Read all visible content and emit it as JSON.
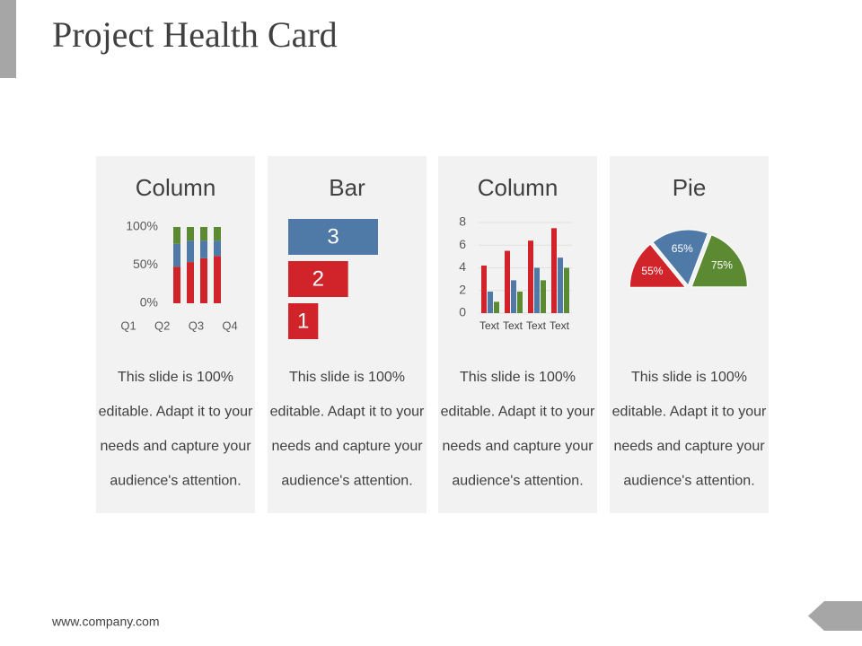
{
  "title": "Project Health Card",
  "footer": "www.company.com",
  "cards": [
    {
      "lines": [
        "This slide is 100%",
        "editable. Adapt it to your",
        "needs and capture your",
        "audience's attention."
      ]
    },
    {
      "lines": [
        "This slide is 100%",
        "editable. Adapt it to your",
        "needs and capture your",
        "audience's attention."
      ]
    },
    {
      "lines": [
        "This slide is 100%",
        "editable. Adapt it to your",
        "needs and capture your",
        "audience's attention."
      ]
    },
    {
      "lines": [
        "This slide is 100%",
        "editable. Adapt it to your",
        "needs and capture your",
        "audience's attention."
      ]
    }
  ],
  "chart_data": [
    {
      "type": "stacked-column",
      "title": "Column",
      "categories": [
        "Q1",
        "Q2",
        "Q3",
        "Q4"
      ],
      "series": [
        {
          "color": "#d0232a",
          "values": [
            48,
            54,
            59,
            62
          ]
        },
        {
          "color": "#4f79a7",
          "values": [
            30,
            28,
            23,
            20
          ]
        },
        {
          "color": "#5b8a32",
          "values": [
            22,
            18,
            18,
            18
          ]
        }
      ],
      "ylim": [
        0,
        100
      ],
      "yticks": [
        {
          "value": 0,
          "label": "0%"
        },
        {
          "value": 50,
          "label": "50%"
        },
        {
          "value": 100,
          "label": "100%"
        }
      ],
      "grid": false
    },
    {
      "type": "bar",
      "title": "Bar",
      "orientation": "horizontal",
      "values": [
        3,
        2,
        1
      ],
      "colors": [
        "#4f79a7",
        "#d0232a",
        "#d0232a"
      ],
      "xlim": [
        0,
        3
      ]
    },
    {
      "type": "column",
      "title": "Column",
      "categories": [
        "Text",
        "Text",
        "Text",
        "Text"
      ],
      "series": [
        {
          "color": "#d0232a",
          "values": [
            4.2,
            5.5,
            6.4,
            7.5
          ]
        },
        {
          "color": "#4f79a7",
          "values": [
            1.9,
            2.9,
            4.0,
            4.9
          ]
        },
        {
          "color": "#5b8a32",
          "values": [
            1.0,
            1.9,
            2.9,
            4.0
          ]
        }
      ],
      "ylim": [
        0,
        8
      ],
      "yticks": [
        0,
        2,
        4,
        6,
        8
      ],
      "grid": true
    },
    {
      "type": "pie",
      "title": "Pie",
      "semicircle": true,
      "values": [
        55,
        65,
        75
      ],
      "value_labels": [
        "55%",
        "65%",
        "75%"
      ],
      "colors": [
        "#d0232a",
        "#4f79a7",
        "#5b8a32"
      ]
    }
  ]
}
